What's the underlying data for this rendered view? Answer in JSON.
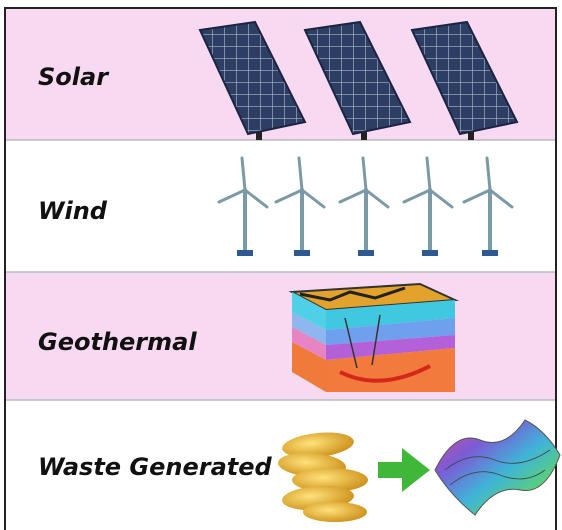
{
  "rows": [
    {
      "label": "Solar"
    },
    {
      "label": "Wind"
    },
    {
      "label": "Geothermal"
    },
    {
      "label": "Waste Generated"
    }
  ]
}
